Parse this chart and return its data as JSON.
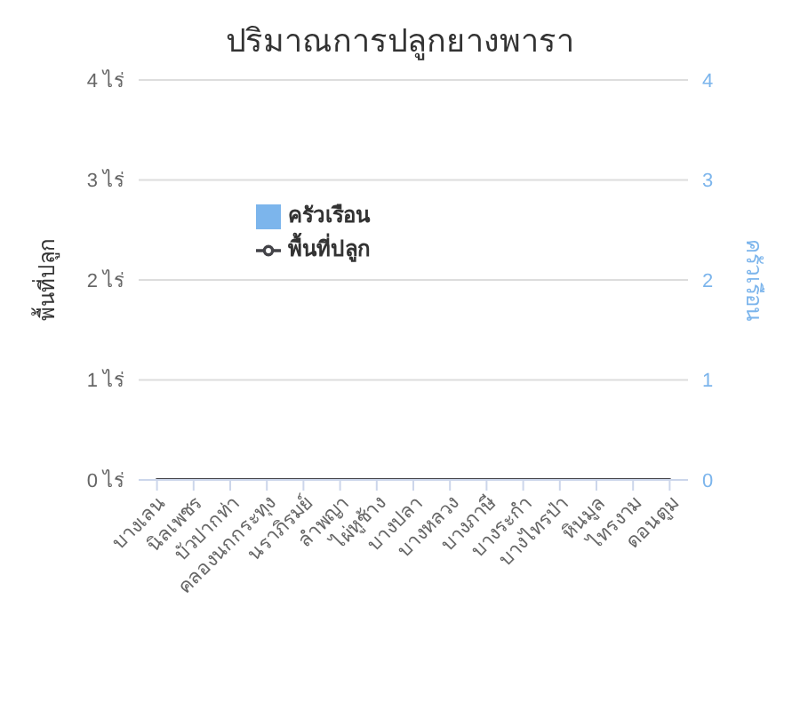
{
  "chart_data": {
    "type": "bar",
    "title": "ปริมาณการปลูกยางพารา",
    "categories": [
      "บางเลน",
      "นิลเพชร",
      "บัวปากท่า",
      "คลองนกกระทุง",
      "นราภิรมย์",
      "ลำพญา",
      "ไผ่หูช้าง",
      "บางปลา",
      "บางหลวง",
      "บางภาษี",
      "บางระกำ",
      "บางไทรป่า",
      "หินมูล",
      "ไทรงาม",
      "ดอนตูม"
    ],
    "series": [
      {
        "name": "ครัวเรือน",
        "axis": "y2",
        "color": "#7cb5ec",
        "values": [
          0,
          0,
          0,
          0,
          0,
          0,
          0,
          0,
          0,
          0,
          0,
          0,
          0,
          0,
          0
        ]
      },
      {
        "name": "พื้นที่ปลูก",
        "type": "line",
        "color": "#434348",
        "values": [
          0,
          0,
          0,
          0,
          0,
          0,
          0,
          0,
          0,
          0,
          0,
          0,
          0,
          0,
          0
        ]
      }
    ],
    "ylabel": "พื้นที่ปลูก",
    "y2label": "ครัวเรือน",
    "ylim": [
      0,
      4
    ],
    "yticks": [
      {
        "value": 0,
        "label": "0 ไร่"
      },
      {
        "value": 1,
        "label": "1 ไร่"
      },
      {
        "value": 2,
        "label": "2 ไร่"
      },
      {
        "value": 3,
        "label": "3 ไร่"
      },
      {
        "value": 4,
        "label": "4 ไร่"
      }
    ],
    "y2lim": [
      0,
      4
    ],
    "y2ticks": [
      0,
      1,
      2,
      3,
      4
    ],
    "grid": "y",
    "legend": "top left"
  }
}
